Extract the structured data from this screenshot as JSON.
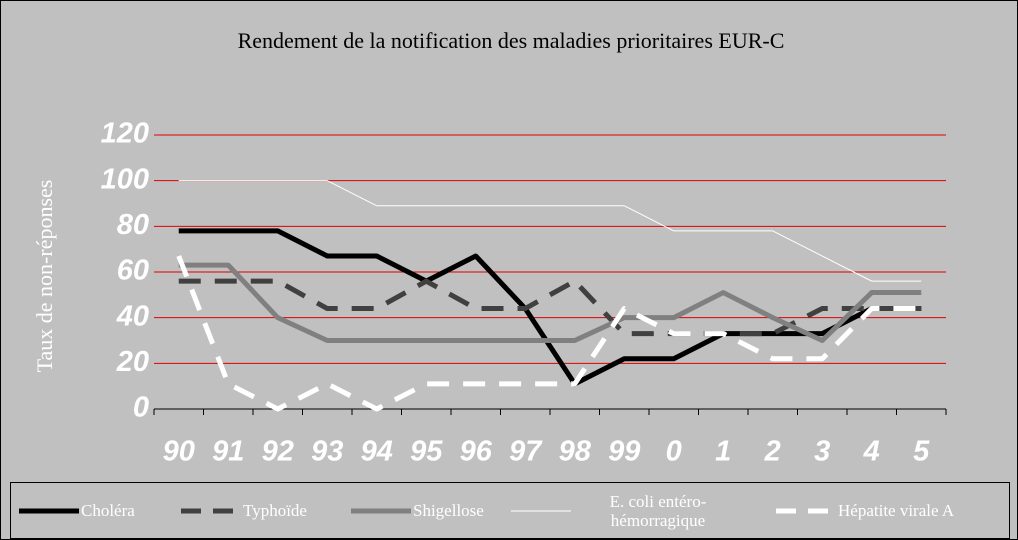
{
  "chart_data": {
    "type": "line",
    "title": "Rendement de la notification des maladies prioritaires EUR-C",
    "y_label": "Taux de non-réponses",
    "categories": [
      "90",
      "91",
      "92",
      "93",
      "94",
      "95",
      "96",
      "97",
      "98",
      "99",
      "0",
      "1",
      "2",
      "3",
      "4",
      "5"
    ],
    "ylim": [
      0,
      120
    ],
    "yticks": [
      0,
      20,
      40,
      60,
      80,
      100,
      120
    ],
    "grid": true,
    "grid_color": "#e00000",
    "legend": "bottom",
    "series": [
      {
        "name": "Choléra",
        "color": "#000000",
        "width": 5,
        "dashed": false,
        "values": [
          78,
          78,
          78,
          67,
          67,
          56,
          67,
          44,
          11,
          22,
          22,
          33,
          33,
          33,
          44,
          44
        ]
      },
      {
        "name": "Typhoïde",
        "color": "#404040",
        "width": 5,
        "dashed": true,
        "values": [
          56,
          56,
          56,
          44,
          44,
          56,
          44,
          44,
          56,
          33,
          33,
          33,
          33,
          44,
          44,
          44
        ]
      },
      {
        "name": "Shigellose",
        "color": "#808080",
        "width": 5,
        "dashed": false,
        "values": [
          63,
          63,
          40,
          30,
          30,
          30,
          30,
          30,
          30,
          40,
          40,
          51,
          40,
          30,
          51,
          51
        ]
      },
      {
        "name": "E. coli entéro-hémorragique",
        "color": "#ffffff",
        "width": 1,
        "dashed": false,
        "values": [
          100,
          100,
          100,
          100,
          89,
          89,
          89,
          89,
          89,
          89,
          78,
          78,
          78,
          67,
          56,
          56
        ]
      },
      {
        "name": "Hépatite virale A",
        "color": "#ffffff",
        "width": 5,
        "dashed": true,
        "values": [
          67,
          11,
          0,
          11,
          0,
          11,
          11,
          11,
          11,
          44,
          33,
          33,
          22,
          22,
          44,
          44
        ]
      }
    ]
  }
}
